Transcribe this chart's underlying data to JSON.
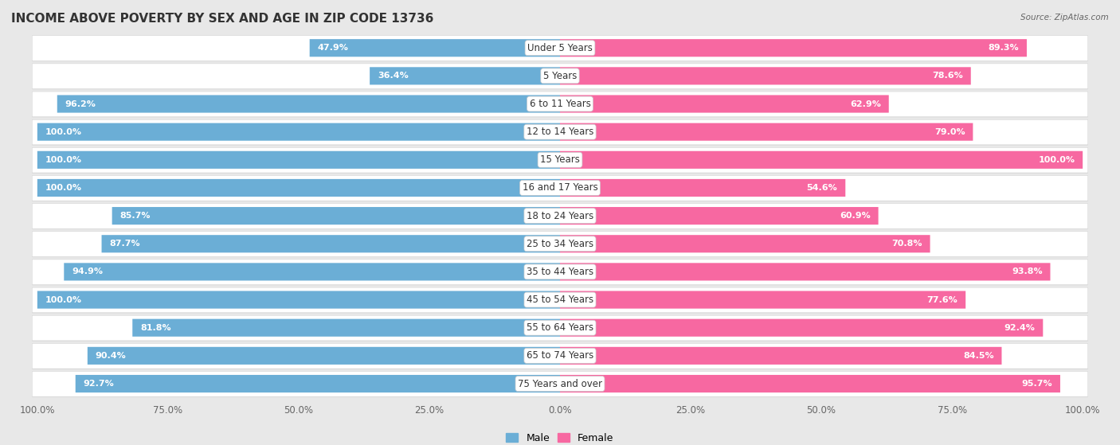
{
  "title": "INCOME ABOVE POVERTY BY SEX AND AGE IN ZIP CODE 13736",
  "source": "Source: ZipAtlas.com",
  "categories": [
    "Under 5 Years",
    "5 Years",
    "6 to 11 Years",
    "12 to 14 Years",
    "15 Years",
    "16 and 17 Years",
    "18 to 24 Years",
    "25 to 34 Years",
    "35 to 44 Years",
    "45 to 54 Years",
    "55 to 64 Years",
    "65 to 74 Years",
    "75 Years and over"
  ],
  "male_values": [
    47.9,
    36.4,
    96.2,
    100.0,
    100.0,
    100.0,
    85.7,
    87.7,
    94.9,
    100.0,
    81.8,
    90.4,
    92.7
  ],
  "female_values": [
    89.3,
    78.6,
    62.9,
    79.0,
    100.0,
    54.6,
    60.9,
    70.8,
    93.8,
    77.6,
    92.4,
    84.5,
    95.7
  ],
  "male_color": "#6baed6",
  "female_color": "#f768a1",
  "male_color_light": "#a8d4f0",
  "female_color_light": "#fbafd1",
  "male_label": "Male",
  "female_label": "Female",
  "background_color": "#e8e8e8",
  "row_bg_color": "#f5f5f5",
  "title_fontsize": 11,
  "label_fontsize": 8,
  "tick_fontsize": 8.5,
  "x_max": 100
}
